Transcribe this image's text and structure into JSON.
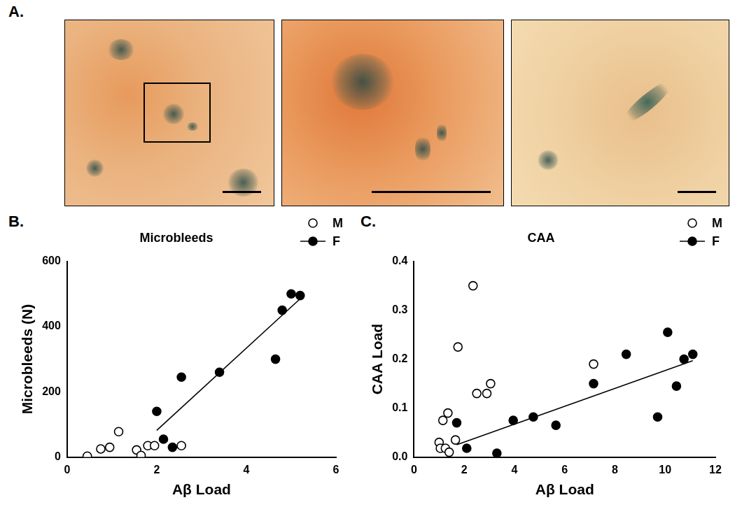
{
  "panel_A": {
    "label": "A."
  },
  "chart_data": [
    {
      "panel_label": "B.",
      "type": "scatter",
      "title": "Microbleeds",
      "x_label": "Aβ Load",
      "y_label": "Microbleeds (N)",
      "xlim": [
        0,
        6
      ],
      "xticks": [
        0,
        2,
        4,
        6
      ],
      "ylim": [
        0,
        600
      ],
      "yticks": [
        0,
        200,
        400,
        600
      ],
      "grid": false,
      "legend": "top right",
      "series": [
        {
          "name": "M",
          "color": "#000000",
          "marker": "circle_open",
          "x": [
            0.45,
            0.75,
            0.95,
            1.15,
            1.55,
            1.65,
            1.8,
            1.95,
            2.55
          ],
          "values": [
            3,
            25,
            30,
            78,
            22,
            5,
            35,
            35,
            35
          ]
        },
        {
          "name": "F",
          "color": "#000000",
          "marker": "circle",
          "x": [
            2.0,
            2.15,
            2.35,
            2.55,
            3.4,
            4.65,
            4.8,
            5.0,
            5.2
          ],
          "values": [
            140,
            55,
            30,
            245,
            260,
            300,
            450,
            500,
            495
          ],
          "trend": {
            "x": [
              2.0,
              5.2
            ],
            "values": [
              82,
              485
            ]
          }
        }
      ]
    },
    {
      "panel_label": "C.",
      "type": "scatter",
      "title": "CAA",
      "x_label": "Aβ Load",
      "y_label": "CAA Load",
      "xlim": [
        0,
        12
      ],
      "xticks": [
        0,
        2,
        4,
        6,
        8,
        10,
        12
      ],
      "ylim": [
        0,
        0.4
      ],
      "yticks": [
        {
          "value": 0,
          "label": "0.0"
        },
        0.1,
        0.2,
        0.3,
        0.4
      ],
      "grid": false,
      "legend": "top right",
      "series": [
        {
          "name": "M",
          "color": "#000000",
          "marker": "circle_open",
          "x": [
            1.0,
            1.05,
            1.15,
            1.25,
            1.35,
            1.4,
            1.65,
            1.75,
            2.35,
            2.5,
            2.9,
            3.05,
            7.15
          ],
          "values": [
            0.03,
            0.018,
            0.075,
            0.018,
            0.09,
            0.01,
            0.035,
            0.225,
            0.35,
            0.13,
            0.13,
            0.15,
            0.19
          ]
        },
        {
          "name": "F",
          "color": "#000000",
          "marker": "circle",
          "x": [
            1.7,
            2.1,
            3.3,
            3.95,
            4.75,
            5.65,
            7.15,
            8.45,
            9.7,
            10.1,
            10.45,
            10.75,
            11.1
          ],
          "values": [
            0.07,
            0.018,
            0.008,
            0.075,
            0.082,
            0.065,
            0.15,
            0.21,
            0.082,
            0.255,
            0.145,
            0.2,
            0.21
          ],
          "trend": {
            "x": [
              1.7,
              11.1
            ],
            "values": [
              0.025,
              0.197
            ]
          }
        }
      ]
    }
  ]
}
